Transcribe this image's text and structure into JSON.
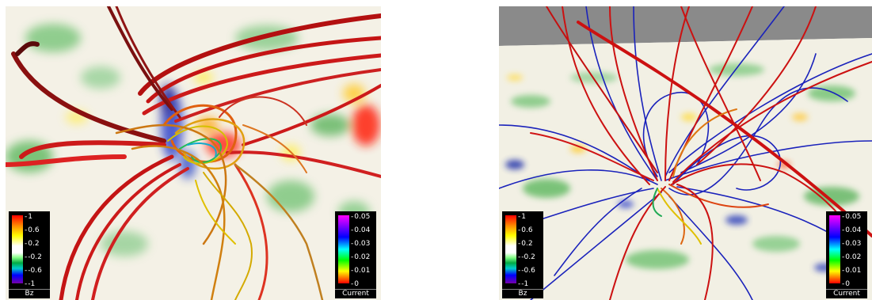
{
  "panels": [
    {
      "id": "left",
      "bz_colorbar": {
        "label": "Bz",
        "ticks": [
          "1",
          "0.6",
          "0.2",
          "-0.2",
          "-0.6",
          "-1"
        ]
      },
      "current_colorbar": {
        "label": "Current",
        "ticks": [
          "0.05",
          "0.04",
          "0.03",
          "0.02",
          "0.01",
          "0"
        ]
      }
    },
    {
      "id": "right",
      "bz_colorbar": {
        "label": "Bz",
        "ticks": [
          "1",
          "0.6",
          "0.2",
          "-0.2",
          "-0.6",
          "-1"
        ]
      },
      "current_colorbar": {
        "label": "Current",
        "ticks": [
          "0.05",
          "0.04",
          "0.03",
          "0.02",
          "0.01",
          "0"
        ]
      }
    }
  ],
  "colors": {
    "field_line_red": "#cc1111",
    "field_line_blue": "#1a22bb",
    "field_line_yellow": "#e0c000",
    "sky_gray": "#8a8a8a"
  }
}
